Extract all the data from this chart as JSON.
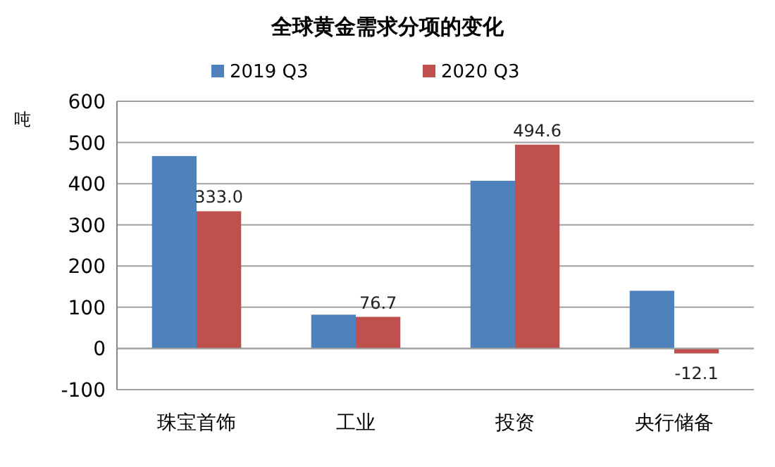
{
  "chart_data": {
    "type": "bar",
    "title": "全球黄金需求分项的变化",
    "ylabel": "吨",
    "categories": [
      "珠宝首饰",
      "工业",
      "投资",
      "央行储备"
    ],
    "series": [
      {
        "name": "2019 Q3",
        "color": "#4f81bd",
        "values": [
          467,
          82,
          407,
          140
        ]
      },
      {
        "name": "2020 Q3",
        "color": "#c0504d",
        "values": [
          333.0,
          76.7,
          494.6,
          -12.1
        ],
        "value_labels": [
          "333.0",
          "76.7",
          "494.6",
          "-12.1"
        ]
      }
    ],
    "ylim": [
      -100,
      600
    ],
    "yticks": [
      -100,
      0,
      100,
      200,
      300,
      400,
      500,
      600
    ],
    "grid": "y",
    "legend": "top"
  }
}
